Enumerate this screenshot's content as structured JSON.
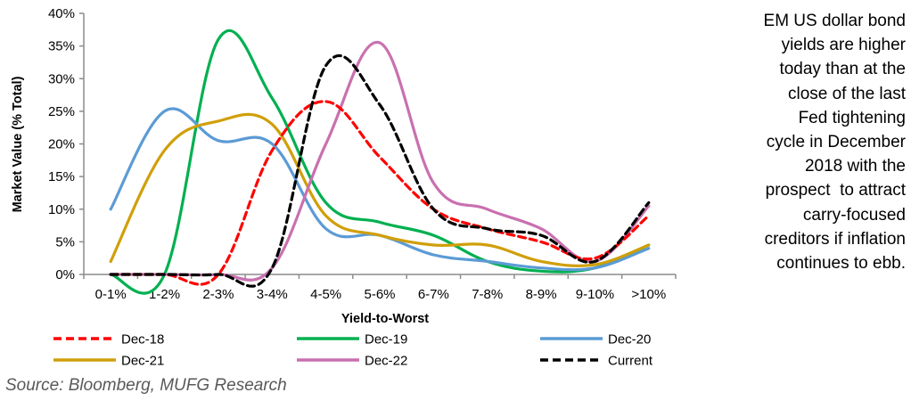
{
  "chart_data": {
    "type": "line",
    "title": "",
    "xlabel": "Yield-to-Worst",
    "ylabel": "Market Value (% Total)",
    "ylim": [
      0,
      40
    ],
    "yticks": [
      0,
      5,
      10,
      15,
      20,
      25,
      30,
      35,
      40
    ],
    "ytick_labels": [
      "0%",
      "5%",
      "10%",
      "15%",
      "20%",
      "25%",
      "30%",
      "35%",
      "40%"
    ],
    "categories": [
      "0-1%",
      "1-2%",
      "2-3%",
      "3-4%",
      "4-5%",
      "5-6%",
      "6-7%",
      "7-8%",
      "8-9%",
      "9-10%",
      ">10%"
    ],
    "grid": false,
    "legend_position": "bottom",
    "series": [
      {
        "name": "Dec-18",
        "color": "#ff0000",
        "dashed": true,
        "values": [
          0,
          0,
          0,
          19,
          26.5,
          18,
          10,
          7,
          5,
          2.5,
          9
        ]
      },
      {
        "name": "Dec-19",
        "color": "#00b050",
        "dashed": false,
        "values": [
          0,
          0,
          36,
          27,
          11,
          8,
          6,
          2,
          0.5,
          1,
          4.5
        ]
      },
      {
        "name": "Dec-20",
        "color": "#5b9bd5",
        "dashed": false,
        "values": [
          10,
          25,
          20.5,
          20,
          7,
          6,
          3,
          2,
          1,
          1,
          4
        ]
      },
      {
        "name": "Dec-21",
        "color": "#d09f0a",
        "dashed": false,
        "values": [
          2,
          19,
          23.5,
          23,
          9,
          6,
          4.5,
          4.5,
          2,
          1.5,
          4.5
        ]
      },
      {
        "name": "Dec-22",
        "color": "#c970b0",
        "dashed": false,
        "values": [
          0,
          0,
          0,
          1,
          20,
          35.5,
          14,
          10,
          7,
          2,
          10.5
        ]
      },
      {
        "name": "Current",
        "color": "#000000",
        "dashed": true,
        "values": [
          0,
          0,
          0,
          1,
          32,
          26,
          10,
          7,
          6,
          2,
          11
        ]
      }
    ]
  },
  "source": "Source: Bloomberg, MUFG Research",
  "note": "EM US dollar bond yields are higher today than at the close of the last Fed tightening cycle in December 2018 with the prospect  to attract carry-focused creditors if inflation continues to ebb.",
  "note_lines": [
    "EM US dollar bond",
    "yields are higher",
    "today than at the",
    "close of the last",
    "Fed tightening",
    "cycle in December",
    "2018 with the",
    "prospect  to attract",
    "carry-focused",
    "creditors if inflation",
    "continues to ebb."
  ]
}
